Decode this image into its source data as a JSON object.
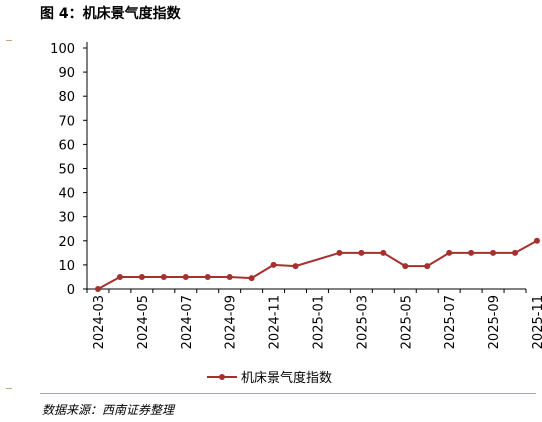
{
  "figure_title": "图 4：机床景气度指数",
  "source_note": "数据来源：西南证券整理",
  "colors": {
    "series": "#a5302e",
    "rule": "#c8a675",
    "axis": "#000000"
  },
  "chart_data": {
    "type": "line",
    "title": "",
    "xlabel": "",
    "ylabel": "",
    "ylim": [
      0,
      100
    ],
    "yticks": [
      "0",
      "10",
      "20",
      "30",
      "40",
      "50",
      "60",
      "70",
      "80",
      "90",
      "100"
    ],
    "xticks": [
      "2024-03",
      "2024-05",
      "2024-07",
      "2024-09",
      "2024-11",
      "2025-01",
      "2025-03",
      "2025-05",
      "2025-07",
      "2025-09",
      "2025-11"
    ],
    "x": [
      "2024-03",
      "2024-04",
      "2024-05",
      "2024-06",
      "2024-07",
      "2024-08",
      "2024-09",
      "2024-10",
      "2024-11",
      "2024-12",
      "2025-02",
      "2025-03",
      "2025-04",
      "2025-05",
      "2025-06",
      "2025-07",
      "2025-08",
      "2025-09",
      "2025-10",
      "2025-11"
    ],
    "series": [
      {
        "name": "机床景气度指数",
        "values": [
          0,
          5,
          5,
          5,
          5,
          5,
          5,
          4.5,
          10,
          9.5,
          15,
          15,
          15,
          9.5,
          9.5,
          15,
          15,
          15,
          15,
          20
        ]
      }
    ],
    "legend": "bottom",
    "grid": false
  }
}
